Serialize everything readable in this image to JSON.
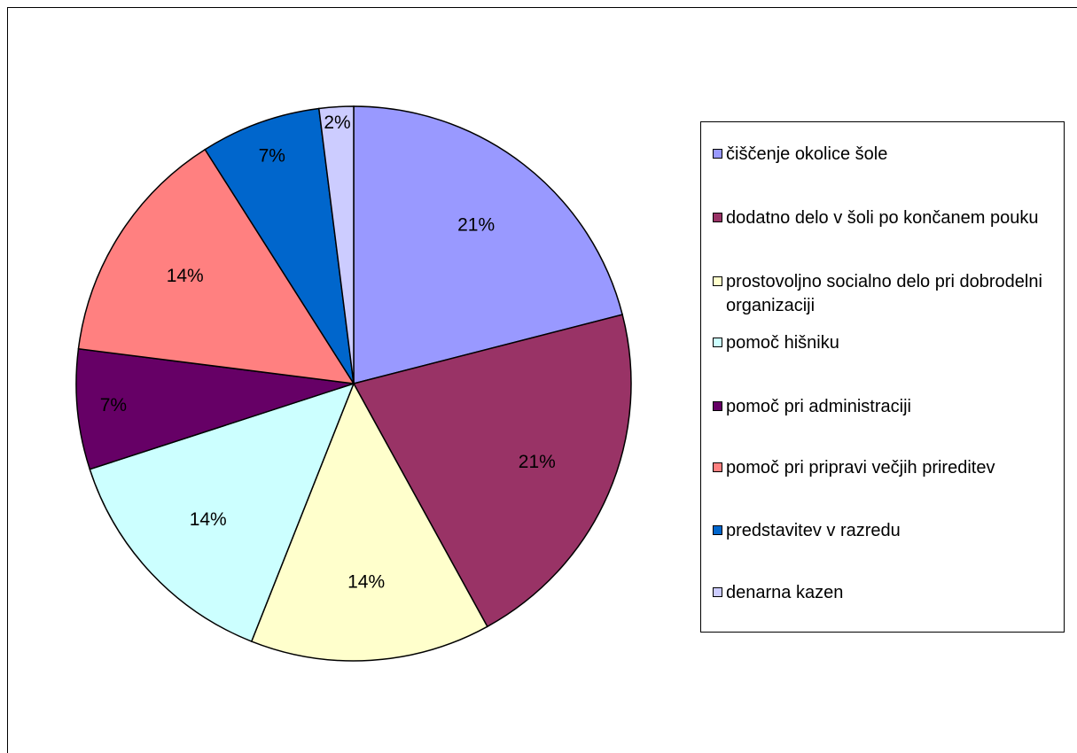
{
  "chart_data": {
    "type": "pie",
    "categories": [
      "čiščenje okolice šole",
      "dodatno delo v šoli po končanem pouku",
      "prostovoljno socialno delo pri dobrodelni organizaciji",
      "pomoč hišniku",
      "pomoč pri administraciji",
      "pomoč pri pripravi večjih prireditev",
      "predstavitev v razredu",
      "denarna kazen"
    ],
    "values": [
      21,
      21,
      14,
      14,
      7,
      14,
      7,
      2
    ],
    "value_labels": [
      "21%",
      "21%",
      "14%",
      "14%",
      "7%",
      "14%",
      "7%",
      "2%"
    ],
    "colors": [
      "#9999ff",
      "#993366",
      "#ffffcc",
      "#ccffff",
      "#660066",
      "#ff8080",
      "#0066cc",
      "#ccccff"
    ],
    "legend": "right"
  }
}
